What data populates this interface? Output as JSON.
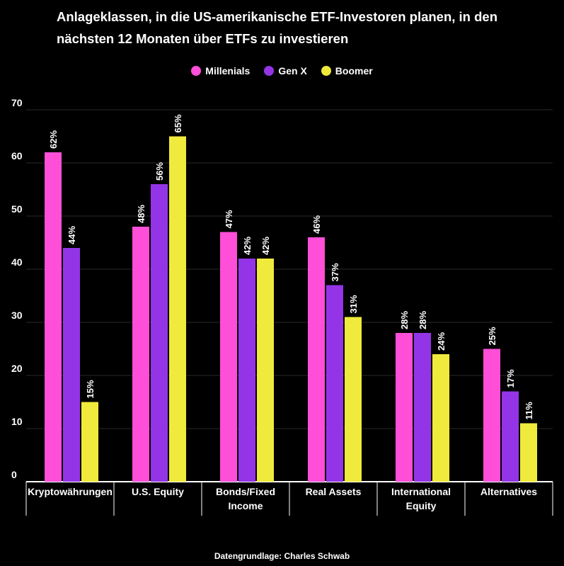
{
  "title_line1": "Anlageklassen, in die US-amerikanische ETF-Investoren planen, in den",
  "title_line2": "nächsten 12 Monaten über ETFs zu investieren",
  "source": "Datengrundlage: Charles Schwab",
  "colors": {
    "background": "#000000",
    "text": "#ffffff",
    "grid": "#2a2a2a",
    "axis": "#ffffff",
    "millenials": "#ff4fd8",
    "genx": "#9335e6",
    "boomer": "#f0ea3c"
  },
  "legend": [
    {
      "name": "Millenials",
      "color": "#ff4fd8"
    },
    {
      "name": "Gen X",
      "color": "#9335e6"
    },
    {
      "name": "Boomer",
      "color": "#f0ea3c"
    }
  ],
  "chart_data": {
    "type": "bar",
    "title": "Anlageklassen, in die US-amerikanische ETF-Investoren planen, in den nächsten 12 Monaten über ETFs zu investieren",
    "xlabel": "",
    "ylabel": "",
    "ylim": [
      0,
      70
    ],
    "yticks": [
      0,
      10,
      20,
      30,
      40,
      50,
      60,
      70
    ],
    "grid": true,
    "legend_position": "top-center",
    "categories": [
      [
        "Kryptowährungen"
      ],
      [
        "U.S. Equity"
      ],
      [
        "Bonds/Fixed",
        "Income"
      ],
      [
        "Real Assets"
      ],
      [
        "International",
        "Equity"
      ],
      [
        "Alternatives"
      ]
    ],
    "series": [
      {
        "name": "Millenials",
        "color": "#ff4fd8",
        "values": [
          62,
          48,
          47,
          46,
          28,
          25
        ]
      },
      {
        "name": "Gen X",
        "color": "#9335e6",
        "values": [
          44,
          56,
          42,
          37,
          28,
          17
        ]
      },
      {
        "name": "Boomer",
        "color": "#f0ea3c",
        "values": [
          15,
          65,
          42,
          31,
          24,
          11
        ]
      }
    ],
    "value_suffix": "%"
  }
}
